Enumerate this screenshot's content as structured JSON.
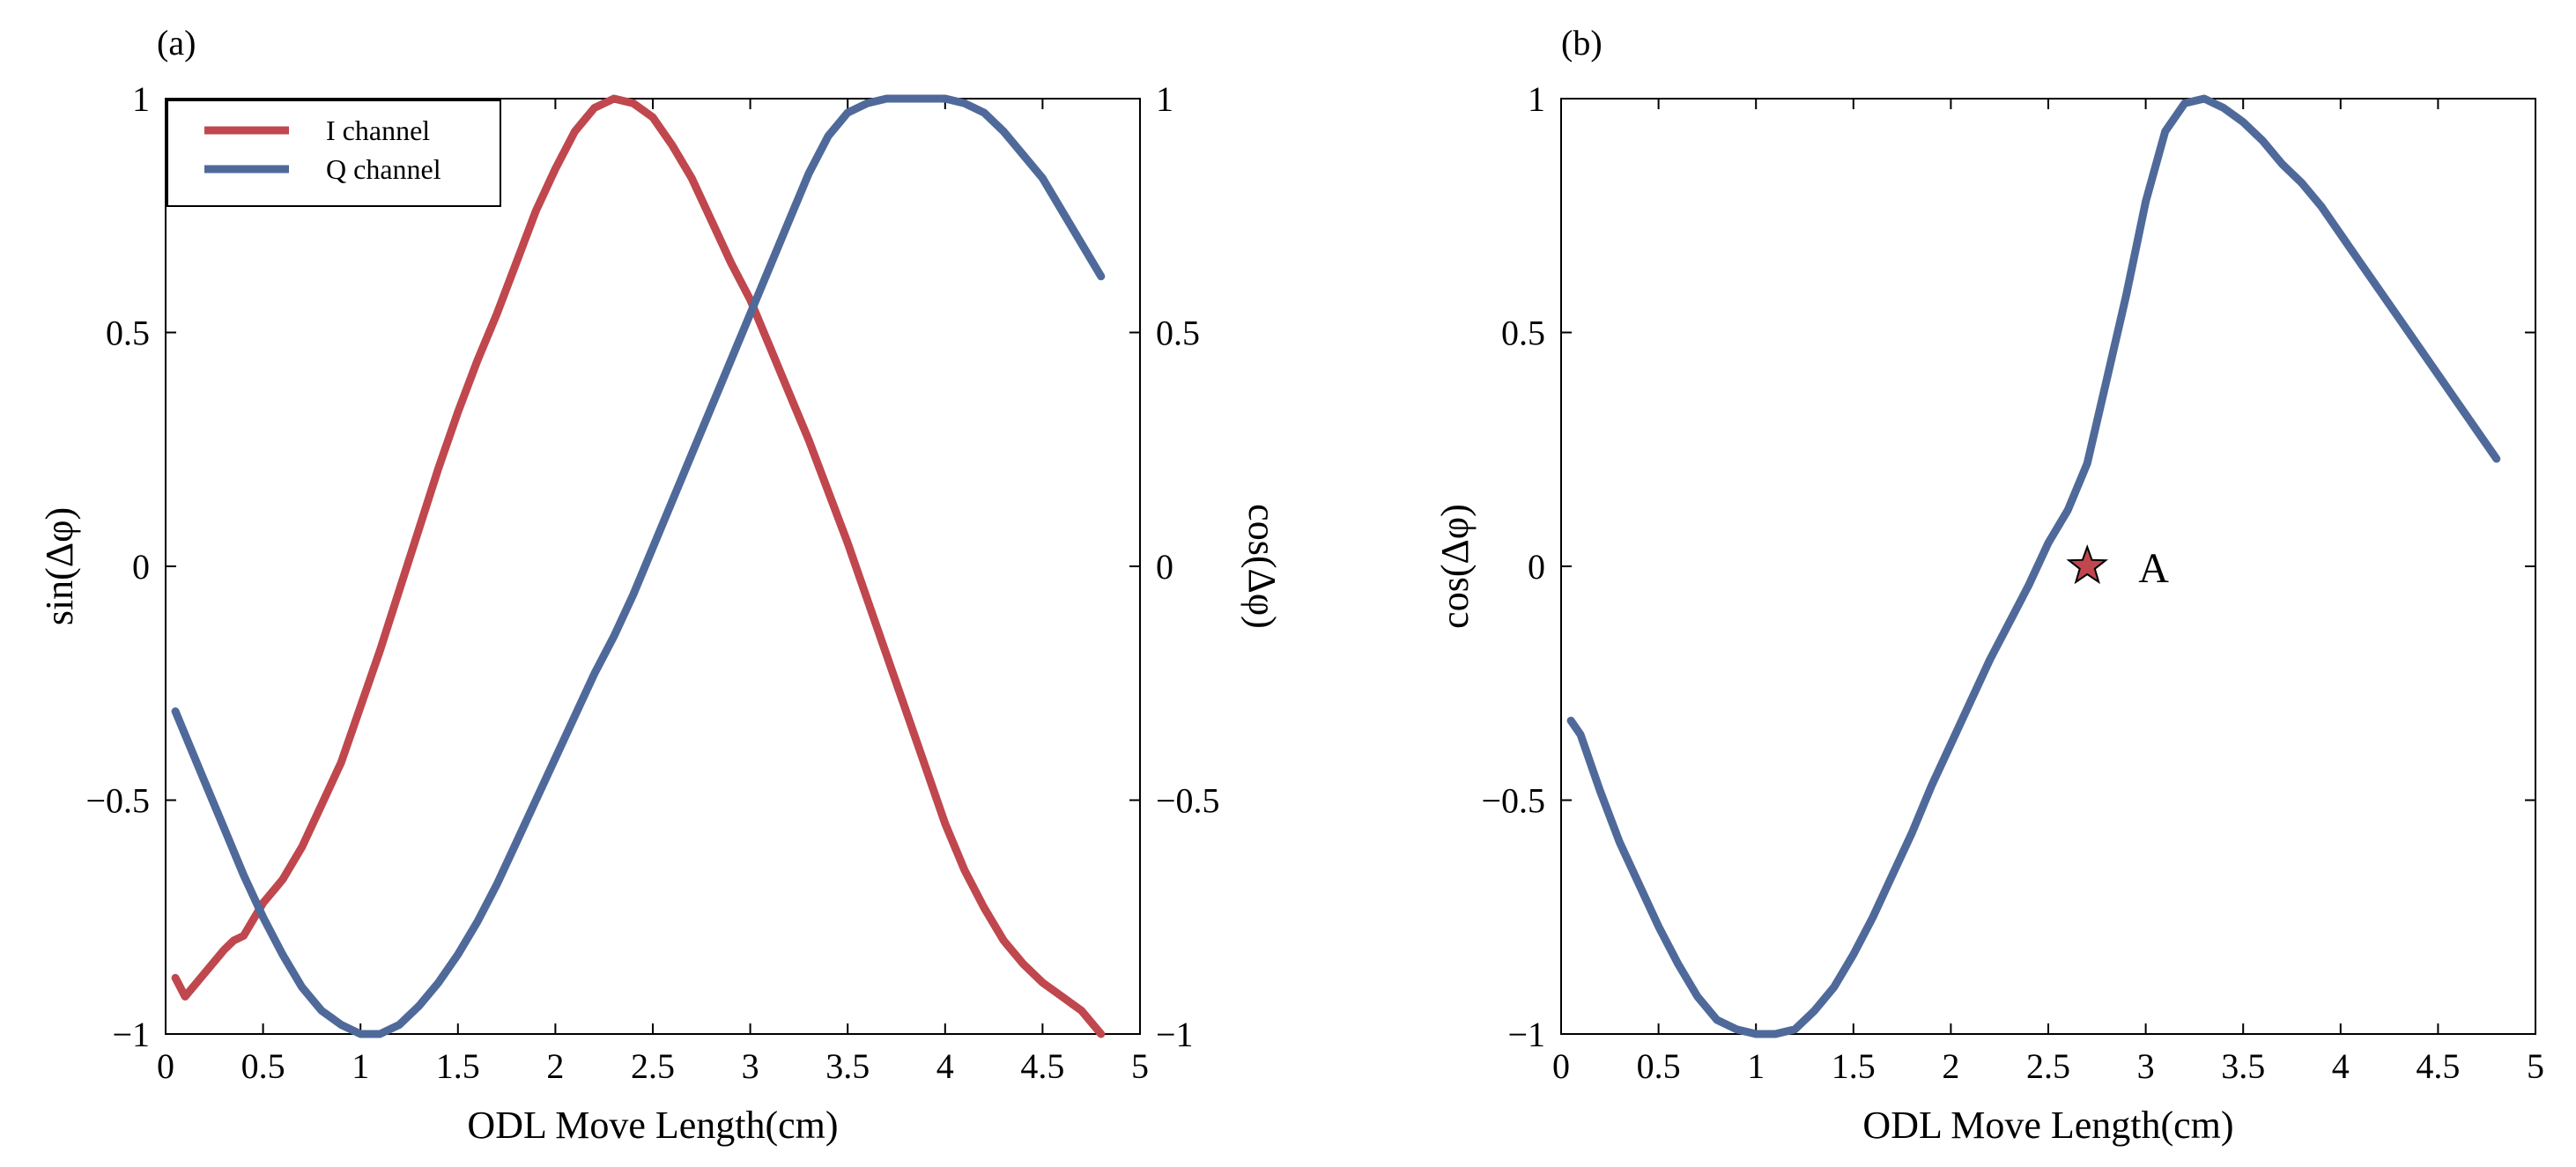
{
  "chart_data": [
    {
      "type": "line",
      "panel_label": "(a)",
      "xlabel": "ODL Move Length(cm)",
      "ylabel": "sin(Δφ)",
      "ylabel_right": "cos(Δφ)",
      "xlim": [
        0,
        5
      ],
      "ylim": [
        -1,
        1
      ],
      "x_ticks": [
        0,
        0.5,
        1,
        1.5,
        2,
        2.5,
        3,
        3.5,
        4,
        4.5,
        5
      ],
      "x_tick_labels": [
        "0",
        "0.5",
        "1",
        "1.5",
        "2",
        "2.5",
        "3",
        "3.5",
        "4",
        "4.5",
        "5"
      ],
      "y_ticks": [
        -1,
        -0.5,
        0,
        0.5,
        1
      ],
      "y_tick_labels": [
        "−1",
        "−0.5",
        "0",
        "0.5",
        "1"
      ],
      "y_tick_labels_right": [
        "−1",
        "−0.5",
        "0",
        "0.5",
        "1"
      ],
      "legend_position": "top-left",
      "series": [
        {
          "name": "I channel",
          "color": "#c0474e",
          "x": [
            0.05,
            0.1,
            0.2,
            0.3,
            0.35,
            0.4,
            0.5,
            0.6,
            0.7,
            0.8,
            0.9,
            1.0,
            1.1,
            1.2,
            1.3,
            1.4,
            1.5,
            1.6,
            1.7,
            1.8,
            1.9,
            2.0,
            2.1,
            2.2,
            2.3,
            2.4,
            2.5,
            2.6,
            2.7,
            2.8,
            2.9,
            3.0,
            3.1,
            3.2,
            3.3,
            3.4,
            3.5,
            3.6,
            3.7,
            3.8,
            3.9,
            4.0,
            4.1,
            4.2,
            4.3,
            4.4,
            4.5,
            4.6,
            4.7,
            4.8
          ],
          "values": [
            -0.88,
            -0.92,
            -0.87,
            -0.82,
            -0.8,
            -0.79,
            -0.72,
            -0.67,
            -0.6,
            -0.51,
            -0.42,
            -0.3,
            -0.18,
            -0.05,
            0.08,
            0.21,
            0.33,
            0.44,
            0.54,
            0.65,
            0.76,
            0.85,
            0.93,
            0.98,
            1.0,
            0.99,
            0.96,
            0.9,
            0.83,
            0.74,
            0.65,
            0.57,
            0.47,
            0.37,
            0.27,
            0.16,
            0.05,
            -0.07,
            -0.19,
            -0.31,
            -0.43,
            -0.55,
            -0.65,
            -0.73,
            -0.8,
            -0.85,
            -0.89,
            -0.92,
            -0.95,
            -1.0
          ]
        },
        {
          "name": "Q channel",
          "color": "#4f6a9a",
          "x": [
            0.05,
            0.1,
            0.2,
            0.3,
            0.4,
            0.5,
            0.6,
            0.7,
            0.8,
            0.9,
            1.0,
            1.1,
            1.2,
            1.3,
            1.4,
            1.5,
            1.6,
            1.7,
            1.8,
            1.9,
            2.0,
            2.1,
            2.2,
            2.3,
            2.4,
            2.5,
            2.6,
            2.7,
            2.8,
            2.9,
            3.0,
            3.1,
            3.2,
            3.3,
            3.4,
            3.5,
            3.6,
            3.7,
            3.8,
            3.9,
            4.0,
            4.1,
            4.2,
            4.3,
            4.4,
            4.5,
            4.6,
            4.7,
            4.8
          ],
          "values": [
            -0.31,
            -0.36,
            -0.46,
            -0.56,
            -0.66,
            -0.75,
            -0.83,
            -0.9,
            -0.95,
            -0.98,
            -1.0,
            -1.0,
            -0.98,
            -0.94,
            -0.89,
            -0.83,
            -0.76,
            -0.68,
            -0.59,
            -0.5,
            -0.41,
            -0.32,
            -0.23,
            -0.15,
            -0.06,
            0.04,
            0.14,
            0.24,
            0.34,
            0.44,
            0.54,
            0.64,
            0.74,
            0.84,
            0.92,
            0.97,
            0.99,
            1.0,
            1.0,
            1.0,
            1.0,
            0.99,
            0.97,
            0.93,
            0.88,
            0.83,
            0.76,
            0.69,
            0.62
          ]
        }
      ]
    },
    {
      "type": "line",
      "panel_label": "(b)",
      "xlabel": "ODL Move Length(cm)",
      "ylabel": "cos(Δφ)",
      "xlim": [
        0,
        5
      ],
      "ylim": [
        -1,
        1
      ],
      "x_ticks": [
        0,
        0.5,
        1,
        1.5,
        2,
        2.5,
        3,
        3.5,
        4,
        4.5,
        5
      ],
      "x_tick_labels": [
        "0",
        "0.5",
        "1",
        "1.5",
        "2",
        "2.5",
        "3",
        "3.5",
        "4",
        "4.5",
        "5"
      ],
      "y_ticks": [
        -1,
        -0.5,
        0,
        0.5,
        1
      ],
      "y_tick_labels": [
        "−1",
        "−0.5",
        "0",
        "0.5",
        "1"
      ],
      "series": [
        {
          "name": "cos(Δφ)",
          "color": "#4f6a9a",
          "x": [
            0.05,
            0.1,
            0.2,
            0.3,
            0.4,
            0.5,
            0.6,
            0.7,
            0.8,
            0.9,
            1.0,
            1.1,
            1.2,
            1.3,
            1.4,
            1.5,
            1.6,
            1.7,
            1.8,
            1.9,
            2.0,
            2.1,
            2.2,
            2.3,
            2.4,
            2.5,
            2.6,
            2.7,
            2.8,
            2.9,
            3.0,
            3.1,
            3.2,
            3.3,
            3.4,
            3.5,
            3.6,
            3.7,
            3.8,
            3.9,
            4.0,
            4.1,
            4.2,
            4.3,
            4.4,
            4.5,
            4.6,
            4.7,
            4.8
          ],
          "values": [
            -0.33,
            -0.36,
            -0.48,
            -0.59,
            -0.68,
            -0.77,
            -0.85,
            -0.92,
            -0.97,
            -0.99,
            -1.0,
            -1.0,
            -0.99,
            -0.95,
            -0.9,
            -0.83,
            -0.75,
            -0.66,
            -0.57,
            -0.47,
            -0.38,
            -0.29,
            -0.2,
            -0.12,
            -0.04,
            0.05,
            0.12,
            0.22,
            0.4,
            0.58,
            0.78,
            0.93,
            0.99,
            1.0,
            0.98,
            0.95,
            0.91,
            0.86,
            0.82,
            0.77,
            0.71,
            0.65,
            0.59,
            0.53,
            0.47,
            0.41,
            0.35,
            0.29,
            0.23
          ]
        }
      ],
      "annotations": [
        {
          "label": "A",
          "marker": "star",
          "x": 2.7,
          "y": 0.0,
          "color": "#c0474e"
        }
      ]
    }
  ]
}
